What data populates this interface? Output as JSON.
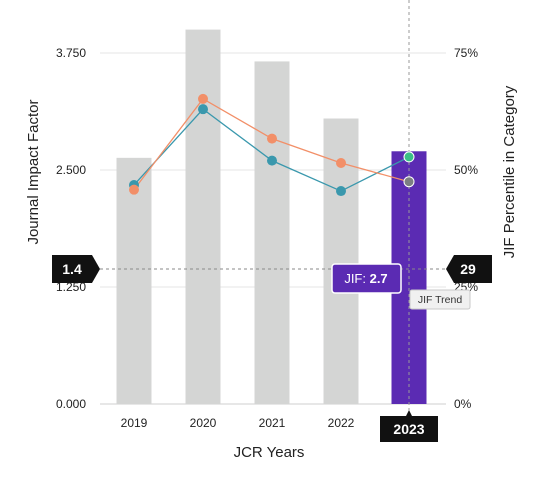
{
  "chart_data": {
    "type": "bar",
    "categories": [
      "2019",
      "2020",
      "2021",
      "2022",
      "2023"
    ],
    "xlabel": "JCR Years",
    "ylabel": "Journal Impact Factor",
    "y2label": "JIF Percentile in Category",
    "ylim": [
      0,
      4.0
    ],
    "y2lim": [
      0,
      80
    ],
    "yticks": [
      "0.000",
      "1.250",
      "2.500",
      "3.750"
    ],
    "y2ticks": [
      "0%",
      "25%",
      "50%",
      "75%"
    ],
    "grid": true,
    "series": [
      {
        "name": "Journal Impact Factor",
        "type": "bar",
        "values": [
          2.63,
          4.0,
          3.66,
          3.05,
          2.7
        ]
      },
      {
        "type": "line",
        "axis": "right",
        "values": [
          46.8,
          63.0,
          52.0,
          45.5,
          52.8
        ]
      },
      {
        "type": "line",
        "axis": "right",
        "values": [
          45.8,
          65.2,
          56.7,
          51.5,
          47.5
        ]
      }
    ],
    "highlight": {
      "category": "2023",
      "category_label": "2023",
      "jif_prefix": "JIF: ",
      "jif_value": "2.7",
      "tooltip": "JIF Trend"
    },
    "crosshair": {
      "left_value": "1.4",
      "right_value": "29",
      "y": 1.4
    }
  },
  "colors": {
    "bar": "#d4d5d4",
    "bar_highlight": "#5b2bb3",
    "line_teal": "#3a98ad",
    "line_orange": "#f28f68",
    "point_teal_highlight": "#3bbf86",
    "point_orange_highlight": "#7b7e82",
    "badge": "#111111",
    "grid": "#e4e4e4"
  }
}
